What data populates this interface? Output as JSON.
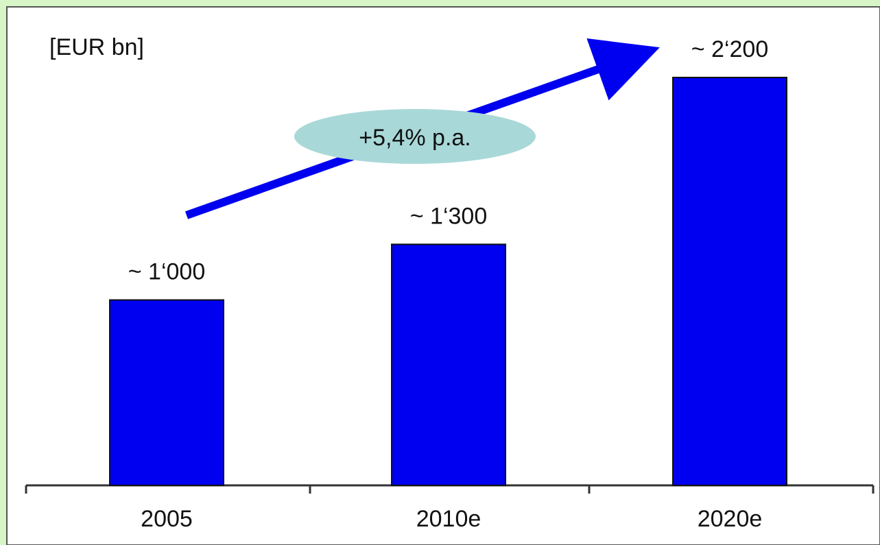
{
  "chart_data": {
    "type": "bar",
    "unit_label": "[EUR bn]",
    "categories": [
      "2005",
      "2010e",
      "2020e"
    ],
    "values": [
      1000,
      1300,
      2200
    ],
    "value_labels": [
      "~ 1‘000",
      "~ 1‘300",
      "~ 2‘200"
    ],
    "ylim": [
      0,
      2350
    ],
    "grid": false,
    "annotation": {
      "text": "+5,4% p.a.",
      "type": "growth-arrow"
    },
    "title": "",
    "xlabel": "",
    "ylabel": ""
  },
  "colors": {
    "page_background": "#d8f5c8",
    "plot_background": "#ffffff",
    "bar": "#0000f0",
    "bar_edge": "#111111",
    "arrow": "#0000f0",
    "annotation_ellipse": "#a9d8d8",
    "axis": "#333333",
    "text": "#111111"
  }
}
